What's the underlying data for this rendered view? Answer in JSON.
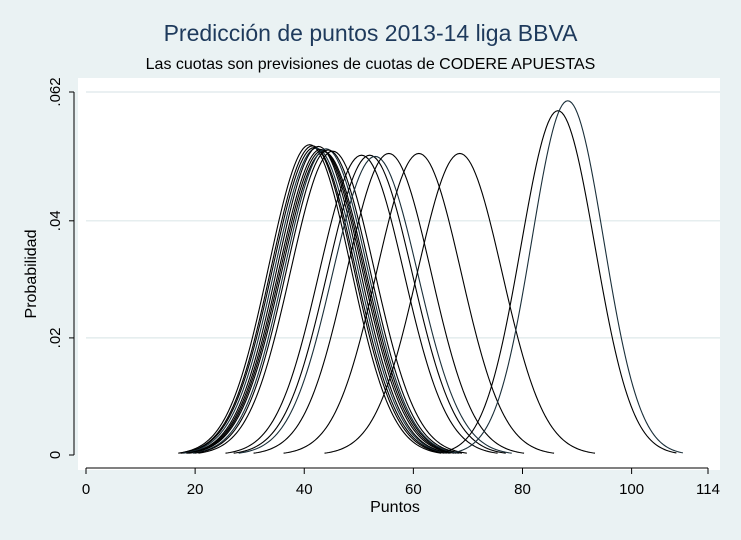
{
  "chart_data": {
    "type": "line",
    "title": "Predicción de puntos 2013-14 liga BBVA",
    "subtitle": "Las cuotas son previsiones de cuotas de CODERE APUESTAS",
    "xlabel": "Puntos",
    "ylabel": "Probabilidad",
    "xlim": [
      0,
      114
    ],
    "ylim": [
      0,
      0.062
    ],
    "x_ticks": [
      "0",
      "20",
      "40",
      "60",
      "80",
      "100",
      "114"
    ],
    "x_tick_values": [
      0,
      20,
      40,
      60,
      80,
      100,
      114
    ],
    "y_ticks": [
      "0",
      ".02",
      ".04",
      ".062"
    ],
    "y_tick_values": [
      0,
      0.02,
      0.04,
      0.062
    ],
    "grid": "horizontal",
    "curve_shape": "normal",
    "series": [
      {
        "mean": 41.0,
        "peak": 0.053
      },
      {
        "mean": 41.5,
        "peak": 0.0528
      },
      {
        "mean": 41.8,
        "peak": 0.0525
      },
      {
        "mean": 42.2,
        "peak": 0.0524
      },
      {
        "mean": 42.6,
        "peak": 0.0527
      },
      {
        "mean": 43.0,
        "peak": 0.0522
      },
      {
        "mean": 43.3,
        "peak": 0.052
      },
      {
        "mean": 43.6,
        "peak": 0.0518
      },
      {
        "mean": 44.0,
        "peak": 0.0523
      },
      {
        "mean": 44.4,
        "peak": 0.0521
      },
      {
        "mean": 45.2,
        "peak": 0.0519
      },
      {
        "mean": 50.5,
        "peak": 0.0512
      },
      {
        "mean": 52.0,
        "peak": 0.0512
      },
      {
        "mean": 53.0,
        "peak": 0.051
      },
      {
        "mean": 55.5,
        "peak": 0.0515
      },
      {
        "mean": 61.0,
        "peak": 0.0515
      },
      {
        "mean": 68.5,
        "peak": 0.0515
      },
      {
        "mean": 86.5,
        "peak": 0.0588
      },
      {
        "mean": 88.3,
        "peak": 0.0605
      }
    ]
  }
}
